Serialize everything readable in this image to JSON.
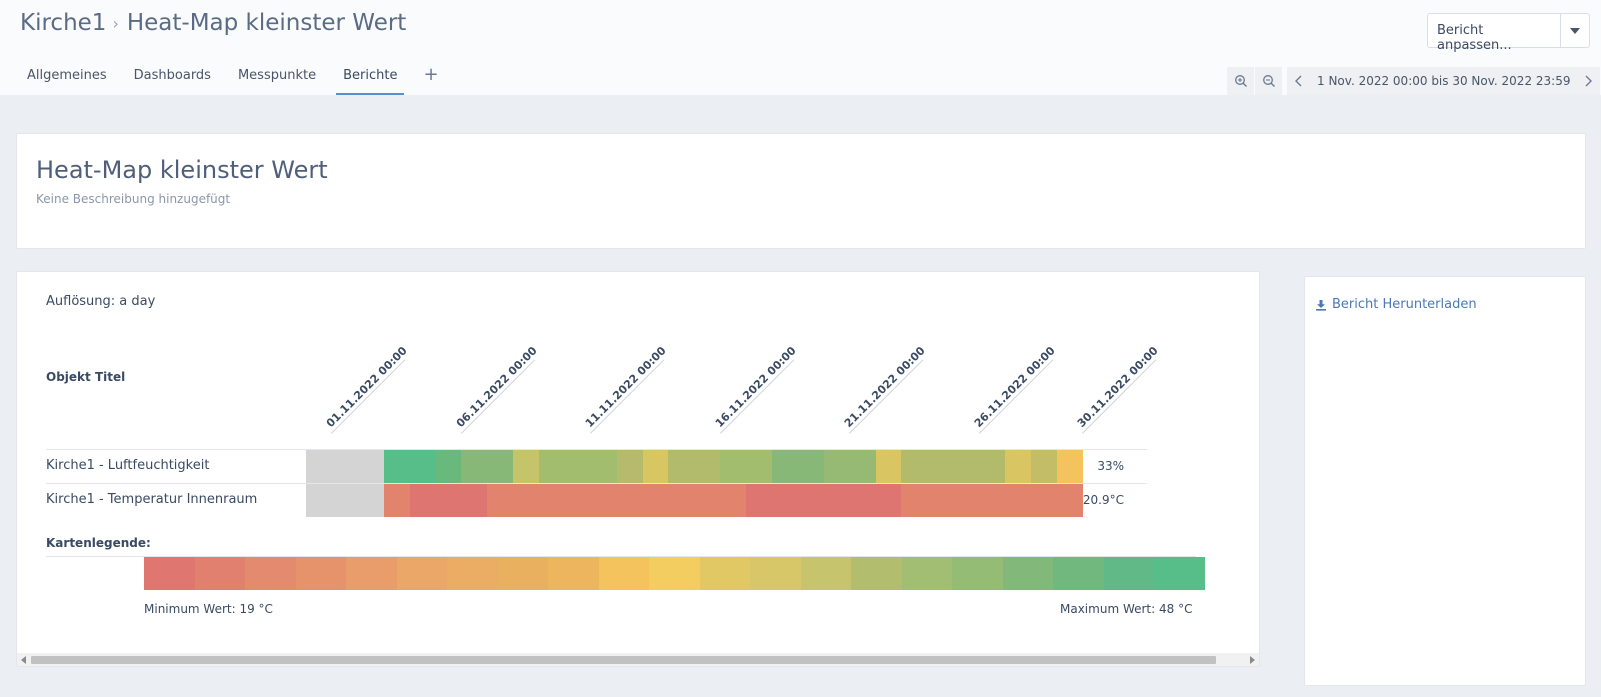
{
  "header": {
    "breadcrumb_parent": "Kirche1",
    "breadcrumb_current": "Heat-Map kleinster Wert",
    "customize_label": "Bericht anpassen...",
    "tabs": [
      {
        "label": "Allgemeines"
      },
      {
        "label": "Dashboards"
      },
      {
        "label": "Messpunkte"
      },
      {
        "label": "Berichte",
        "active": true
      }
    ],
    "add_tab": "+",
    "date_range": "1 Nov. 2022 00:00 bis 30 Nov. 2022 23:59"
  },
  "report": {
    "title": "Heat-Map kleinster Wert",
    "description": "Keine Beschreibung hinzugefügt"
  },
  "heatmap": {
    "resolution": "Auflösung: a day",
    "object_title": "Objekt Titel",
    "date_labels": [
      "01.11.2022 00:00",
      "06.11.2022 00:00",
      "11.11.2022 00:00",
      "16.11.2022 00:00",
      "21.11.2022 00:00",
      "26.11.2022 00:00",
      "30.11.2022 00:00"
    ],
    "rows": [
      {
        "label": "Kirche1 - Luftfeuchtigkeit",
        "value": "33%",
        "cells": [
          "#d4d4d4",
          "#d4d4d4",
          "#d4d4d4",
          "#57bd89",
          "#57bd89",
          "#69b97d",
          "#87b878",
          "#87b878",
          "#c5c46a",
          "#a2bd6e",
          "#a2bd6e",
          "#a2bd6e",
          "#b5ba6d",
          "#d7c662",
          "#b2ba6c",
          "#b2ba6c",
          "#a2bd6e",
          "#a2bd6e",
          "#87b878",
          "#87b878",
          "#96ba74",
          "#96ba74",
          "#d9c663",
          "#b2ba6c",
          "#b2ba6c",
          "#b2ba6c",
          "#b2ba6c",
          "#d9c663",
          "#c3bd68",
          "#f4c35e"
        ]
      },
      {
        "label": "Kirche1 - Temperatur Innenraum",
        "value": "20.9°C",
        "cells": [
          "#d4d4d4",
          "#d4d4d4",
          "#d4d4d4",
          "#e2836e",
          "#de7570",
          "#de7570",
          "#de7570",
          "#e2836e",
          "#e2836e",
          "#e2836e",
          "#e2836e",
          "#e2836e",
          "#e2836e",
          "#e2836e",
          "#e2836e",
          "#e2836e",
          "#e2836e",
          "#de7570",
          "#de7570",
          "#de7570",
          "#de7570",
          "#de7570",
          "#de7570",
          "#e2836e",
          "#e2836e",
          "#e2836e",
          "#e2836e",
          "#e2836e",
          "#e2836e",
          "#e2836e"
        ]
      }
    ],
    "legend_title": "Kartenlegende:",
    "legend_colors": [
      "#e07670",
      "#e28070",
      "#e48a6e",
      "#e6936c",
      "#e89d6a",
      "#eba768",
      "#ebad63",
      "#e9b060",
      "#edb65e",
      "#f4c35e",
      "#f3cd60",
      "#e2c864",
      "#d8c768",
      "#c6c46c",
      "#b3bd6e",
      "#a1be72",
      "#95bc74",
      "#82b97a",
      "#70b87e",
      "#60b986",
      "#57bd89"
    ],
    "legend_min": "Minimum Wert: 19 °C",
    "legend_max": "Maximum Wert: 48 °C"
  },
  "sidebar": {
    "download_label": "Bericht Herunterladen"
  }
}
